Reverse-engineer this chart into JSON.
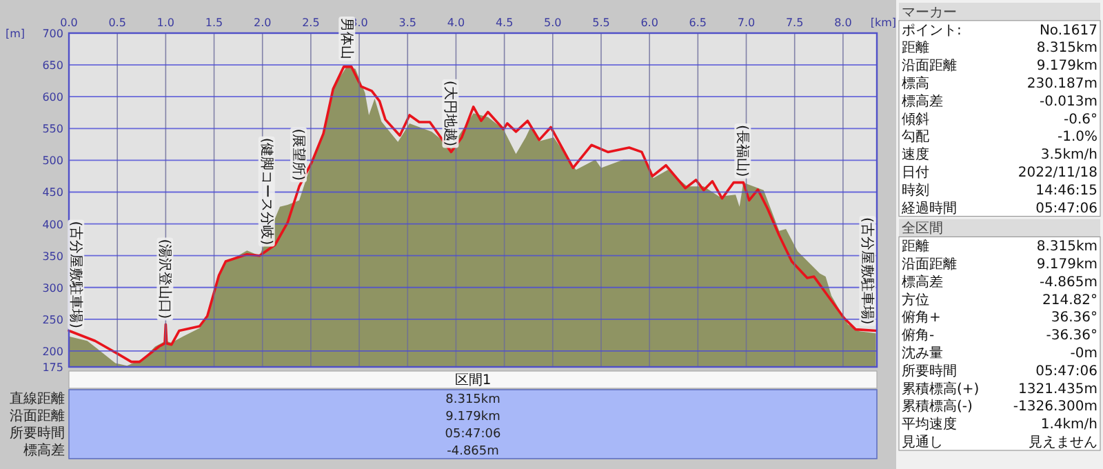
{
  "chart_data": {
    "type": "area",
    "xlabel": "[km]",
    "ylabel": "[m]",
    "xlim": [
      0,
      8.35
    ],
    "ylim": [
      175,
      700
    ],
    "xticks": [
      {
        "value": 0,
        "label": "0.0"
      },
      {
        "value": 0.5,
        "label": "0.5"
      },
      {
        "value": 1,
        "label": "1.0"
      },
      {
        "value": 1.5,
        "label": "1.5"
      },
      {
        "value": 2,
        "label": "2.0"
      },
      {
        "value": 2.5,
        "label": "2.5"
      },
      {
        "value": 3,
        "label": "3.0"
      },
      {
        "value": 3.5,
        "label": "3.5"
      },
      {
        "value": 4,
        "label": "4.0"
      },
      {
        "value": 4.5,
        "label": "4.5"
      },
      {
        "value": 5,
        "label": "5.0"
      },
      {
        "value": 5.5,
        "label": "5.5"
      },
      {
        "value": 6,
        "label": "6.0"
      },
      {
        "value": 6.5,
        "label": "6.5"
      },
      {
        "value": 7,
        "label": "7.0"
      },
      {
        "value": 7.5,
        "label": "7.5"
      },
      {
        "value": 8,
        "label": "8.0"
      }
    ],
    "yticks": [
      175,
      200,
      250,
      300,
      350,
      400,
      450,
      500,
      550,
      600,
      650,
      700
    ],
    "grid": true,
    "series": [
      {
        "type": "area",
        "color": "#8a8f5c",
        "x": [
          0,
          0.19,
          0.29,
          0.48,
          0.6,
          0.77,
          0.89,
          1.0,
          1.06,
          1.18,
          1.35,
          1.43,
          1.55,
          1.62,
          1.68,
          1.84,
          1.97,
          2.18,
          2.26,
          2.38,
          2.51,
          2.63,
          2.75,
          2.87,
          2.96,
          3.06,
          3.1,
          3.16,
          3.23,
          3.4,
          3.52,
          3.75,
          3.95,
          4.18,
          4.33,
          4.49,
          4.62,
          4.72,
          4.78,
          4.86,
          5.01,
          5.24,
          5.44,
          5.5,
          5.73,
          5.94,
          6.04,
          6.19,
          6.39,
          6.56,
          6.72,
          6.89,
          6.93,
          6.97,
          7.18,
          7.34,
          7.41,
          7.53,
          7.76,
          7.82,
          7.88,
          8.05,
          8.17,
          8.34
        ],
        "values": [
          223,
          216,
          204,
          181,
          177,
          188,
          207,
          216,
          213,
          223,
          236,
          255,
          319,
          341,
          344,
          358,
          350,
          427,
          430,
          437,
          497,
          542,
          619,
          647,
          644,
          606,
          571,
          597,
          561,
          529,
          558,
          545,
          520,
          574,
          568,
          549,
          510,
          536,
          555,
          530,
          536,
          485,
          501,
          488,
          501,
          501,
          472,
          485,
          459,
          459,
          443,
          446,
          427,
          465,
          453,
          389,
          392,
          357,
          322,
          317,
          287,
          242,
          231,
          228
        ]
      },
      {
        "type": "line",
        "color": "#e8141c",
        "x": [
          0,
          0.27,
          0.5,
          0.645,
          0.73,
          0.93,
          0.99,
          1.0,
          1.01,
          1.06,
          1.14,
          1.35,
          1.43,
          1.55,
          1.62,
          1.68,
          1.84,
          1.97,
          2.13,
          2.26,
          2.38,
          2.51,
          2.63,
          2.73,
          2.84,
          2.92,
          3.02,
          3.13,
          3.21,
          3.27,
          3.42,
          3.52,
          3.62,
          3.73,
          3.95,
          4.06,
          4.18,
          4.26,
          4.33,
          4.49,
          4.53,
          4.62,
          4.74,
          4.86,
          4.98,
          5.21,
          5.4,
          5.57,
          5.79,
          5.92,
          6.03,
          6.17,
          6.37,
          6.48,
          6.56,
          6.65,
          6.75,
          6.87,
          6.97,
          7.03,
          7.12,
          7.22,
          7.34,
          7.47,
          7.63,
          7.7,
          7.8,
          8.01,
          8.13,
          8.34
        ],
        "values": [
          232,
          216,
          196,
          183,
          183,
          207,
          212,
          242,
          212,
          210,
          232,
          239,
          255,
          319,
          341,
          344,
          352,
          350,
          367,
          402,
          459,
          497,
          542,
          612,
          647,
          647,
          616,
          609,
          593,
          564,
          539,
          571,
          560,
          560,
          513,
          536,
          584,
          562,
          576,
          549,
          558,
          545,
          562,
          532,
          552,
          488,
          524,
          513,
          520,
          513,
          475,
          492,
          456,
          469,
          453,
          467,
          440,
          465,
          465,
          437,
          454,
          424,
          382,
          341,
          315,
          317,
          296,
          252,
          234,
          232
        ]
      }
    ],
    "annotations": [
      {
        "text": "(古分屋敷駐車場)",
        "x": 0.08,
        "y": 227
      },
      {
        "text": "(湯沢登山口)",
        "x": 1.0,
        "y": 242
      },
      {
        "text": "(健脚コース分岐)",
        "x": 2.05,
        "y": 358
      },
      {
        "text": "(展望所)",
        "x": 2.38,
        "y": 459
      },
      {
        "text": "男体山",
        "x": 2.88,
        "y": 650
      },
      {
        "text": "(大円地越)",
        "x": 3.95,
        "y": 513
      },
      {
        "text": "(長福山)",
        "x": 6.97,
        "y": 465
      },
      {
        "text": "(古分屋敷駐車場)",
        "x": 8.26,
        "y": 233
      },
      "マーカー",
      "ポイント:\tNo.1617",
      "距離\t8.315km",
      "沿面距離\t9.179km",
      "標高\t230.187m",
      "標高差\t-0.013m",
      "傾斜\t-0.6°",
      "勾配\t-1.0%",
      "速度\t3.5km/h",
      "日付\t2022/11/18",
      "時刻\t14:46:15",
      "経過時間\t05:47:06",
      "全区間",
      "距離\t8.315km",
      "沿面距離\t9.179km",
      "標高差\t-4.865m",
      "方位\t214.82°",
      "俯角+\t36.36°",
      "俯角-\t-36.36°",
      "沈み量\t-0m",
      "所要時間\t05:47:06",
      "累積標高(+)\t1321.435m",
      "累積標高(-)\t-1326.300m",
      "平均速度\t1.4km/h",
      "見通し\t見えません",
      "区間1",
      "直線距離\t8.315km",
      "沿面距離\t9.179km",
      "所要時間\t05:47:06",
      "標高差\t-4.865m"
    ]
  }
}
